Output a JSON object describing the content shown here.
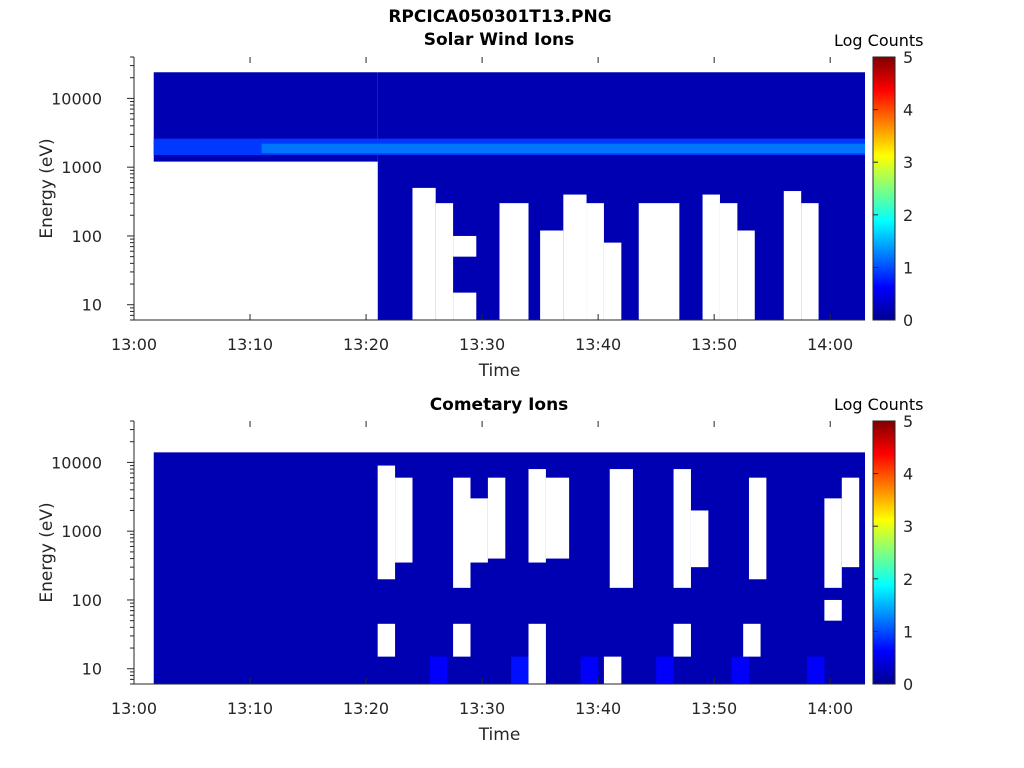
{
  "page_title": "RPCICA050301T13.PNG",
  "colors": {
    "background": "#0a0a87",
    "colormap": [
      "#00008f",
      "#0000ff",
      "#00ffff",
      "#ffff00",
      "#ff0000",
      "#800000"
    ]
  },
  "chart_data": [
    {
      "type": "heatmap",
      "title": "Solar Wind Ions",
      "xlabel": "Time",
      "ylabel": "Energy (eV)",
      "yscale": "log",
      "xticks": [
        "13:00",
        "13:10",
        "13:20",
        "13:30",
        "13:40",
        "13:50",
        "14:00"
      ],
      "xlim": [
        "13:00",
        "14:03"
      ],
      "yticks": [
        "10",
        "100",
        "1000",
        "10000"
      ],
      "ylim": [
        6,
        40000
      ],
      "colorbar": {
        "label": "Log Counts",
        "range": [
          0,
          5
        ],
        "ticks": [
          "0",
          "1",
          "2",
          "3",
          "4",
          "5"
        ]
      },
      "coverage_start": "13:02",
      "regions": [
        {
          "t0": 1.7,
          "t1": 21.0,
          "e0": 1200,
          "e1": 24000,
          "value": 0.2
        },
        {
          "t0": 21.0,
          "t1": 63.0,
          "e0": 6,
          "e1": 24000,
          "value": 0.2
        },
        {
          "t0": 1.7,
          "t1": 63.0,
          "e0": 1500,
          "e1": 2600,
          "value": 0.9
        },
        {
          "t0": 11.0,
          "t1": 63.0,
          "e0": 1600,
          "e1": 2200,
          "value": 1.2
        }
      ],
      "gaps": [
        {
          "t0": 1.7,
          "t1": 21.0,
          "e0": 6,
          "e1": 1200
        },
        {
          "t0": 24.0,
          "t1": 26.0,
          "e0": 6,
          "e1": 500
        },
        {
          "t0": 26.0,
          "t1": 27.5,
          "e0": 6,
          "e1": 300
        },
        {
          "t0": 27.5,
          "t1": 29.5,
          "e0": 6,
          "e1": 15
        },
        {
          "t0": 27.5,
          "t1": 29.5,
          "e0": 50,
          "e1": 100
        },
        {
          "t0": 31.5,
          "t1": 34.0,
          "e0": 6,
          "e1": 300
        },
        {
          "t0": 35.0,
          "t1": 37.0,
          "e0": 6,
          "e1": 120
        },
        {
          "t0": 37.0,
          "t1": 39.0,
          "e0": 6,
          "e1": 400
        },
        {
          "t0": 39.0,
          "t1": 40.5,
          "e0": 6,
          "e1": 300
        },
        {
          "t0": 40.5,
          "t1": 42.0,
          "e0": 6,
          "e1": 80
        },
        {
          "t0": 43.5,
          "t1": 47.0,
          "e0": 6,
          "e1": 300
        },
        {
          "t0": 49.0,
          "t1": 50.5,
          "e0": 6,
          "e1": 400
        },
        {
          "t0": 50.5,
          "t1": 52.0,
          "e0": 6,
          "e1": 300
        },
        {
          "t0": 52.0,
          "t1": 53.5,
          "e0": 6,
          "e1": 120
        },
        {
          "t0": 56.0,
          "t1": 57.5,
          "e0": 6,
          "e1": 450
        },
        {
          "t0": 57.5,
          "t1": 59.0,
          "e0": 6,
          "e1": 300
        }
      ]
    },
    {
      "type": "heatmap",
      "title": "Cometary Ions",
      "xlabel": "Time",
      "ylabel": "Energy (eV)",
      "yscale": "log",
      "xticks": [
        "13:00",
        "13:10",
        "13:20",
        "13:30",
        "13:40",
        "13:50",
        "14:00"
      ],
      "xlim": [
        "13:00",
        "14:03"
      ],
      "yticks": [
        "10",
        "100",
        "1000",
        "10000"
      ],
      "ylim": [
        6,
        40000
      ],
      "colorbar": {
        "label": "Log Counts",
        "range": [
          0,
          5
        ],
        "ticks": [
          "0",
          "1",
          "2",
          "3",
          "4",
          "5"
        ]
      },
      "coverage_start": "13:02",
      "regions": [
        {
          "t0": 1.7,
          "t1": 63.0,
          "e0": 6,
          "e1": 14000,
          "value": 0.2
        },
        {
          "t0": 25.5,
          "t1": 27.0,
          "e0": 6,
          "e1": 15,
          "value": 0.6
        },
        {
          "t0": 32.5,
          "t1": 34.0,
          "e0": 6,
          "e1": 15,
          "value": 0.7
        },
        {
          "t0": 38.5,
          "t1": 40.0,
          "e0": 6,
          "e1": 15,
          "value": 0.6
        },
        {
          "t0": 45.0,
          "t1": 46.5,
          "e0": 6,
          "e1": 15,
          "value": 0.6
        },
        {
          "t0": 51.5,
          "t1": 53.0,
          "e0": 6,
          "e1": 15,
          "value": 0.6
        },
        {
          "t0": 58.0,
          "t1": 59.5,
          "e0": 6,
          "e1": 15,
          "value": 0.6
        }
      ],
      "gaps": [
        {
          "t0": 21.0,
          "t1": 22.5,
          "e0": 200,
          "e1": 9000
        },
        {
          "t0": 21.0,
          "t1": 22.5,
          "e0": 15,
          "e1": 45
        },
        {
          "t0": 22.5,
          "t1": 24.0,
          "e0": 350,
          "e1": 6000
        },
        {
          "t0": 27.5,
          "t1": 29.0,
          "e0": 150,
          "e1": 6000
        },
        {
          "t0": 27.5,
          "t1": 29.0,
          "e0": 15,
          "e1": 45
        },
        {
          "t0": 29.0,
          "t1": 30.5,
          "e0": 350,
          "e1": 3000
        },
        {
          "t0": 30.5,
          "t1": 32.0,
          "e0": 400,
          "e1": 6000
        },
        {
          "t0": 34.0,
          "t1": 35.5,
          "e0": 6,
          "e1": 45
        },
        {
          "t0": 34.0,
          "t1": 35.5,
          "e0": 350,
          "e1": 8000
        },
        {
          "t0": 35.5,
          "t1": 37.5,
          "e0": 400,
          "e1": 6000
        },
        {
          "t0": 40.5,
          "t1": 42.0,
          "e0": 6,
          "e1": 15
        },
        {
          "t0": 41.0,
          "t1": 43.0,
          "e0": 150,
          "e1": 8000
        },
        {
          "t0": 46.5,
          "t1": 48.0,
          "e0": 15,
          "e1": 45
        },
        {
          "t0": 46.5,
          "t1": 48.0,
          "e0": 150,
          "e1": 8000
        },
        {
          "t0": 48.0,
          "t1": 49.5,
          "e0": 300,
          "e1": 2000
        },
        {
          "t0": 52.5,
          "t1": 54.0,
          "e0": 15,
          "e1": 45
        },
        {
          "t0": 53.0,
          "t1": 54.5,
          "e0": 200,
          "e1": 6000
        },
        {
          "t0": 59.5,
          "t1": 61.0,
          "e0": 150,
          "e1": 3000
        },
        {
          "t0": 59.5,
          "t1": 61.0,
          "e0": 50,
          "e1": 100
        },
        {
          "t0": 61.0,
          "t1": 62.5,
          "e0": 300,
          "e1": 6000
        }
      ]
    }
  ]
}
